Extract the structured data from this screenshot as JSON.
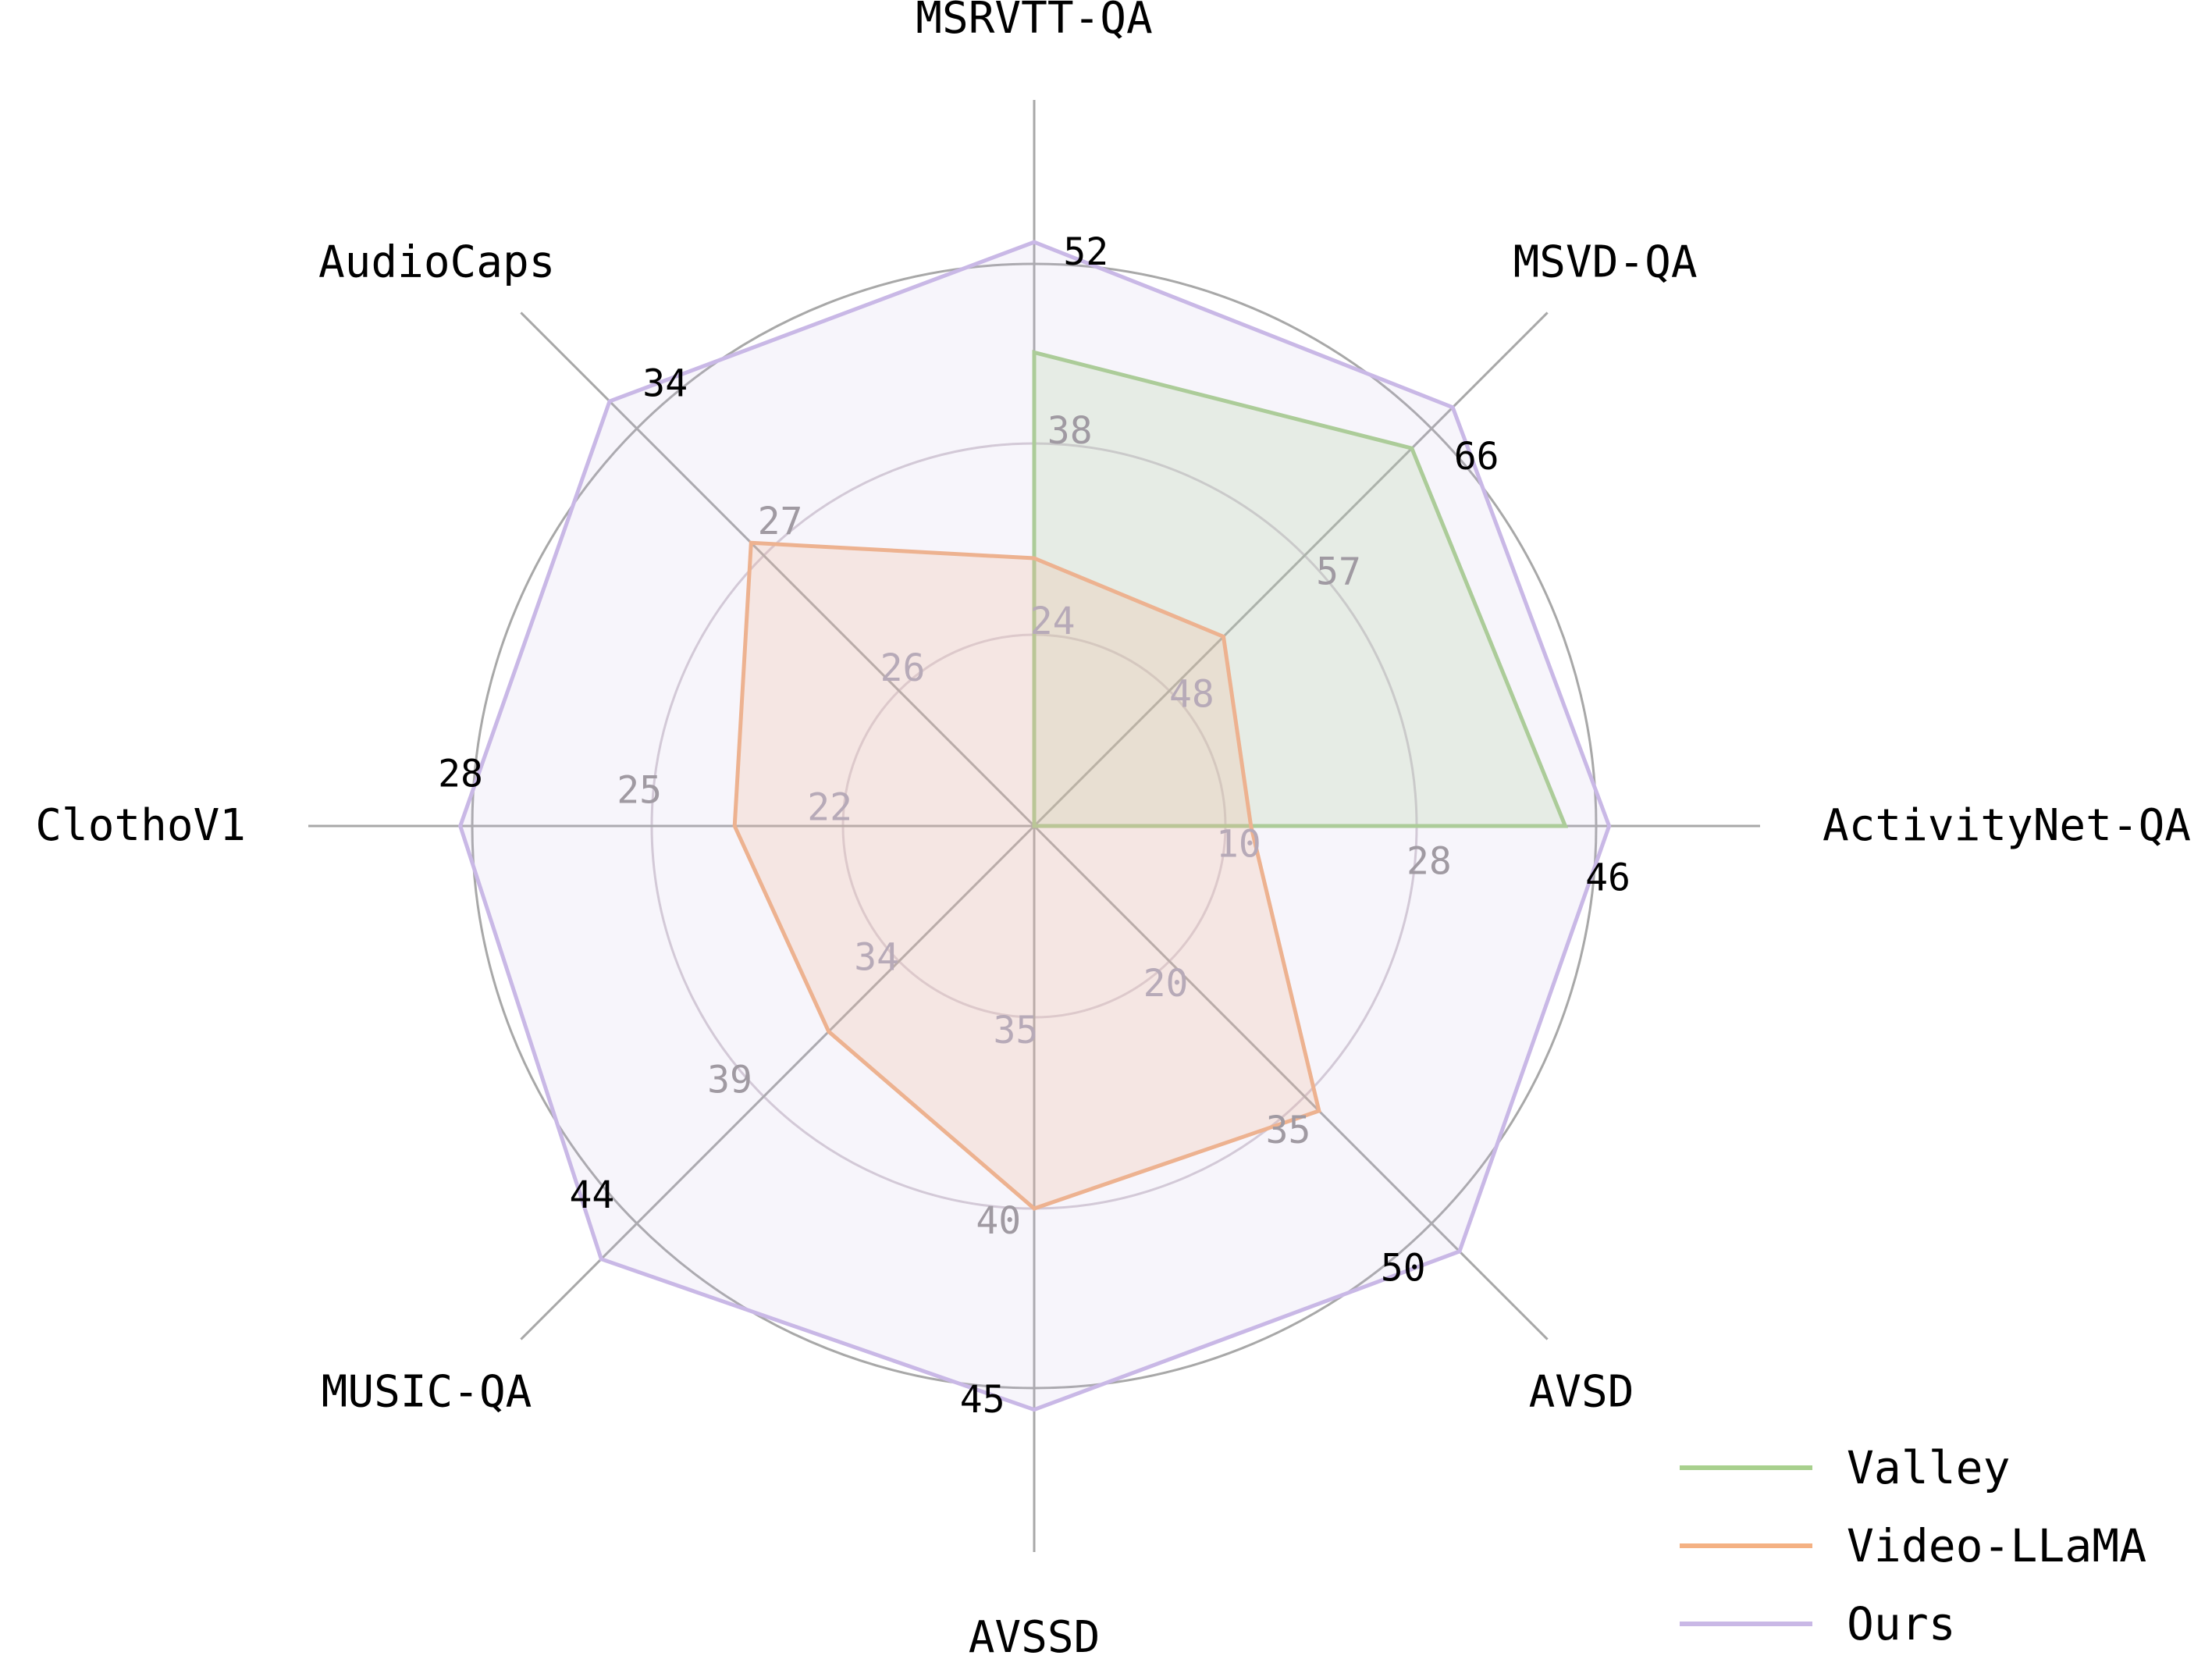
{
  "chart_data": {
    "type": "radar",
    "axes": [
      "MSRVTT-QA",
      "MSVD-QA",
      "ActivityNet-QA",
      "AVSD",
      "AVSSD",
      "MUSIC-QA",
      "ClothoV1",
      "AudioCaps"
    ],
    "ring_tick_labels": {
      "inner": [
        "24",
        "48",
        "10",
        "20",
        "35",
        "34",
        "22",
        "26"
      ],
      "middle": [
        "38",
        "57",
        "28",
        "35",
        "40",
        "39",
        "25",
        "27"
      ],
      "outer": [
        "52",
        "66",
        "46",
        "50",
        "45",
        "44",
        "28",
        "34"
      ]
    },
    "ring_values": [
      [
        24,
        38,
        52
      ],
      [
        48,
        57,
        66
      ],
      [
        10,
        28,
        46
      ],
      [
        20,
        35,
        50
      ],
      [
        35,
        40,
        45
      ],
      [
        34,
        39,
        44
      ],
      [
        22,
        25,
        28
      ],
      [
        26,
        27,
        34
      ]
    ],
    "series": [
      {
        "name": "Valley",
        "color": "#a8d08d",
        "values": [
          45.1,
          64.6,
          42.9,
          null,
          null,
          null,
          null,
          null
        ]
      },
      {
        "name": "Video-LLaMA",
        "color": "#f4b183",
        "values": [
          29.6,
          51.6,
          12.4,
          36.7,
          40.0,
          36.6,
          23.7,
          27.7
        ]
      },
      {
        "name": "Ours",
        "color": "#c9b8e6",
        "values": [
          53.7,
          67.5,
          47.3,
          53.3,
          45.6,
          45.4,
          28.2,
          35.5
        ]
      }
    ],
    "legend_position": "bottom-right",
    "grid": true
  }
}
